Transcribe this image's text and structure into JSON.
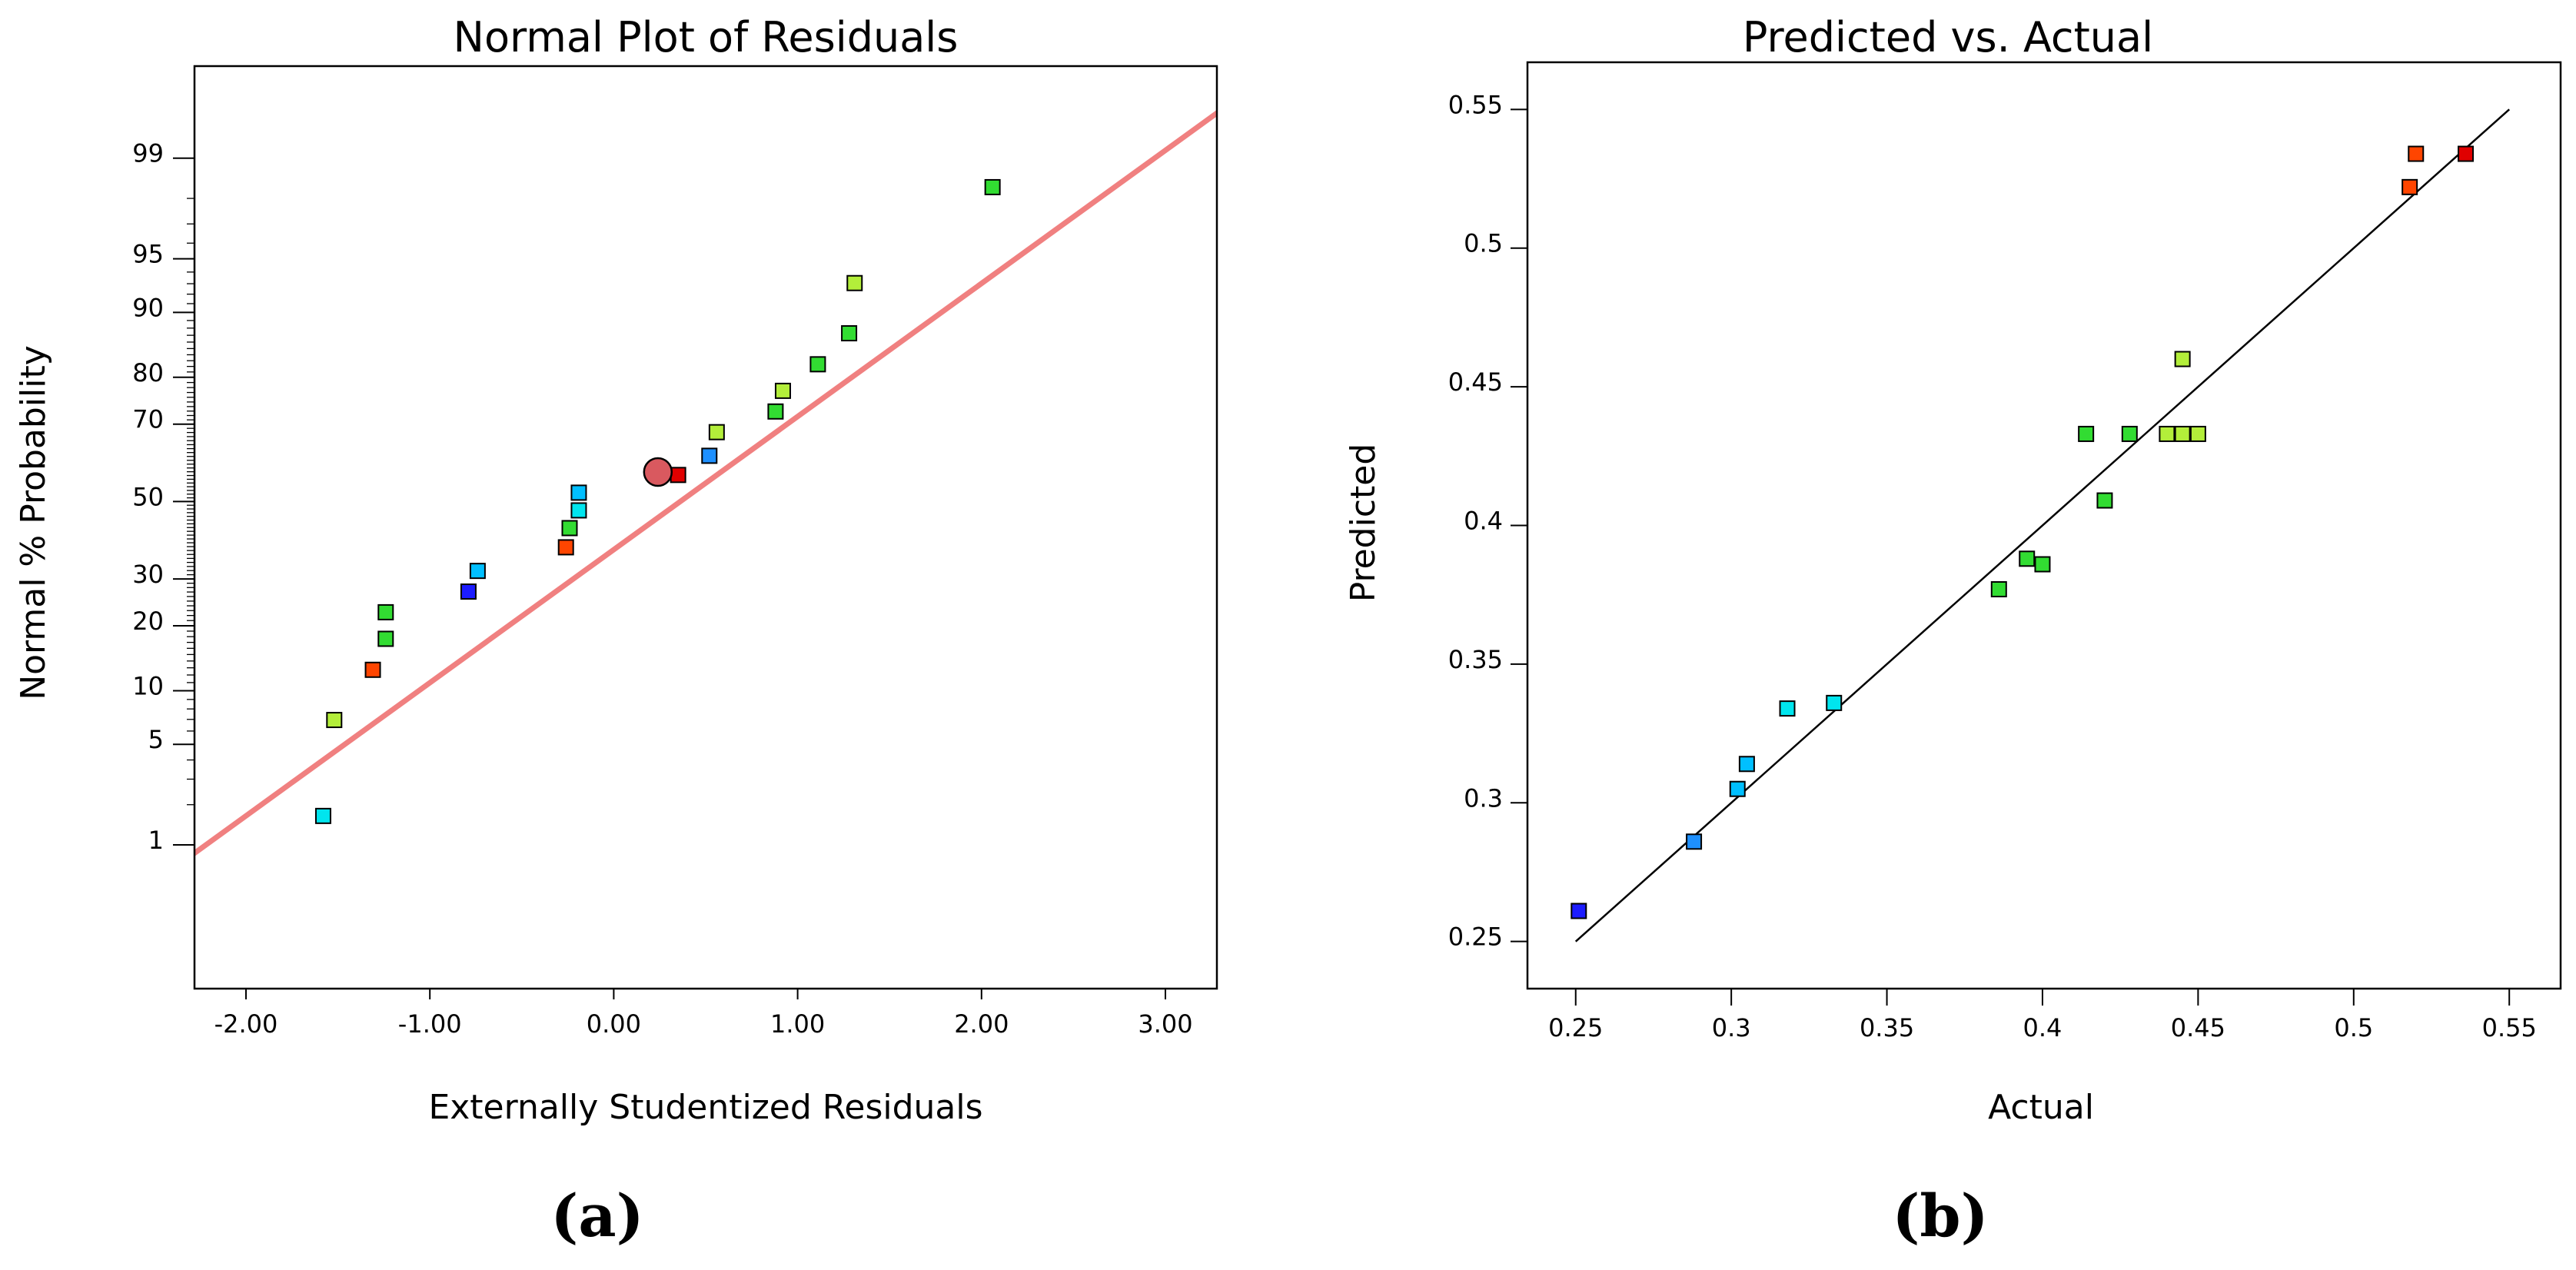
{
  "chart_data": [
    {
      "id": "a",
      "type": "scatter",
      "title": "Normal Plot of Residuals",
      "xlabel": "Externally Studentized Residuals",
      "ylabel": "Normal % Probability",
      "panel_label": "(a)",
      "xlim": [
        -2.28,
        3.28
      ],
      "ylim_z": [
        -3.3,
        2.95
      ],
      "x_ticks": [
        {
          "value": -2,
          "label": "-2.00"
        },
        {
          "value": -1,
          "label": "-1.00"
        },
        {
          "value": 0,
          "label": "0.00"
        },
        {
          "value": 1,
          "label": "1.00"
        },
        {
          "value": 2,
          "label": "2.00"
        },
        {
          "value": 3,
          "label": "3.00"
        }
      ],
      "y_ticks": [
        {
          "prob": 1,
          "label": "1"
        },
        {
          "prob": 5,
          "label": "5"
        },
        {
          "prob": 10,
          "label": "10"
        },
        {
          "prob": 20,
          "label": "20"
        },
        {
          "prob": 30,
          "label": "30"
        },
        {
          "prob": 50,
          "label": "50"
        },
        {
          "prob": 70,
          "label": "70"
        },
        {
          "prob": 80,
          "label": "80"
        },
        {
          "prob": 90,
          "label": "90"
        },
        {
          "prob": 95,
          "label": "95"
        },
        {
          "prob": 99,
          "label": "99"
        }
      ],
      "reference_line": {
        "x1": -2.3,
        "z1": -2.4,
        "x2": 3.3,
        "z2": 2.65,
        "color": "#f08080"
      },
      "points": [
        {
          "x": -1.58,
          "z": -2.13,
          "color": "#00e5ee"
        },
        {
          "x": -1.52,
          "z": -1.48,
          "color": "#b3ee3a"
        },
        {
          "x": -1.31,
          "z": -1.14,
          "color": "#ff4500"
        },
        {
          "x": -1.24,
          "z": -0.93,
          "color": "#32dc32"
        },
        {
          "x": -1.24,
          "z": -0.75,
          "color": "#32dc32"
        },
        {
          "x": -0.79,
          "z": -0.61,
          "color": "#1c1cff"
        },
        {
          "x": -0.74,
          "z": -0.47,
          "color": "#00bfff"
        },
        {
          "x": -0.26,
          "z": -0.31,
          "color": "#ff4500"
        },
        {
          "x": -0.24,
          "z": -0.18,
          "color": "#32dc32"
        },
        {
          "x": -0.19,
          "z": -0.06,
          "color": "#00e5ee"
        },
        {
          "x": -0.19,
          "z": 0.06,
          "color": "#00bfff"
        },
        {
          "x": 0.35,
          "z": 0.18,
          "color": "#e00000"
        },
        {
          "x": 0.52,
          "z": 0.31,
          "color": "#1e90ff"
        },
        {
          "x": 0.56,
          "z": 0.47,
          "color": "#b3ee3a"
        },
        {
          "x": 0.88,
          "z": 0.61,
          "color": "#32dc32"
        },
        {
          "x": 0.92,
          "z": 0.75,
          "color": "#b3ee3a"
        },
        {
          "x": 1.11,
          "z": 0.93,
          "color": "#32dc32"
        },
        {
          "x": 1.28,
          "z": 1.14,
          "color": "#32dc32"
        },
        {
          "x": 1.31,
          "z": 1.48,
          "color": "#b3ee3a"
        },
        {
          "x": 2.06,
          "z": 2.13,
          "color": "#32dc32"
        }
      ],
      "highlight_point": {
        "x": 0.24,
        "z": 0.2,
        "color": "#d9595f"
      }
    },
    {
      "id": "b",
      "type": "scatter",
      "title": "Predicted vs. Actual",
      "xlabel": "Actual",
      "ylabel": "Predicted",
      "panel_label": "(b)",
      "xlim": [
        0.2345,
        0.5665
      ],
      "ylim": [
        0.233,
        0.567
      ],
      "x_ticks": [
        {
          "value": 0.25,
          "label": "0.25"
        },
        {
          "value": 0.3,
          "label": "0.3"
        },
        {
          "value": 0.35,
          "label": "0.35"
        },
        {
          "value": 0.4,
          "label": "0.4"
        },
        {
          "value": 0.45,
          "label": "0.45"
        },
        {
          "value": 0.5,
          "label": "0.5"
        },
        {
          "value": 0.55,
          "label": "0.55"
        }
      ],
      "y_ticks": [
        {
          "value": 0.25,
          "label": "0.25"
        },
        {
          "value": 0.3,
          "label": "0.3"
        },
        {
          "value": 0.35,
          "label": "0.35"
        },
        {
          "value": 0.4,
          "label": "0.4"
        },
        {
          "value": 0.45,
          "label": "0.45"
        },
        {
          "value": 0.5,
          "label": "0.5"
        },
        {
          "value": 0.55,
          "label": "0.55"
        }
      ],
      "reference_line": {
        "x1": 0.25,
        "y1": 0.25,
        "x2": 0.55,
        "y2": 0.55,
        "color": "#000000"
      },
      "points": [
        {
          "x": 0.251,
          "y": 0.261,
          "color": "#1c1cff"
        },
        {
          "x": 0.288,
          "y": 0.286,
          "color": "#1e90ff"
        },
        {
          "x": 0.302,
          "y": 0.305,
          "color": "#00bfff"
        },
        {
          "x": 0.305,
          "y": 0.314,
          "color": "#00bfff"
        },
        {
          "x": 0.318,
          "y": 0.334,
          "color": "#00e5ee"
        },
        {
          "x": 0.333,
          "y": 0.336,
          "color": "#00e5ee"
        },
        {
          "x": 0.386,
          "y": 0.377,
          "color": "#32dc32"
        },
        {
          "x": 0.395,
          "y": 0.388,
          "color": "#32dc32"
        },
        {
          "x": 0.4,
          "y": 0.386,
          "color": "#32dc32"
        },
        {
          "x": 0.414,
          "y": 0.433,
          "color": "#32dc32"
        },
        {
          "x": 0.42,
          "y": 0.409,
          "color": "#32dc32"
        },
        {
          "x": 0.428,
          "y": 0.433,
          "color": "#32dc32"
        },
        {
          "x": 0.44,
          "y": 0.433,
          "color": "#b3ee3a"
        },
        {
          "x": 0.445,
          "y": 0.433,
          "color": "#b3ee3a"
        },
        {
          "x": 0.45,
          "y": 0.433,
          "color": "#b3ee3a"
        },
        {
          "x": 0.445,
          "y": 0.46,
          "color": "#b3ee3a"
        },
        {
          "x": 0.518,
          "y": 0.522,
          "color": "#ff4500"
        },
        {
          "x": 0.52,
          "y": 0.534,
          "color": "#ff4500"
        },
        {
          "x": 0.536,
          "y": 0.534,
          "color": "#e00000"
        }
      ]
    }
  ]
}
